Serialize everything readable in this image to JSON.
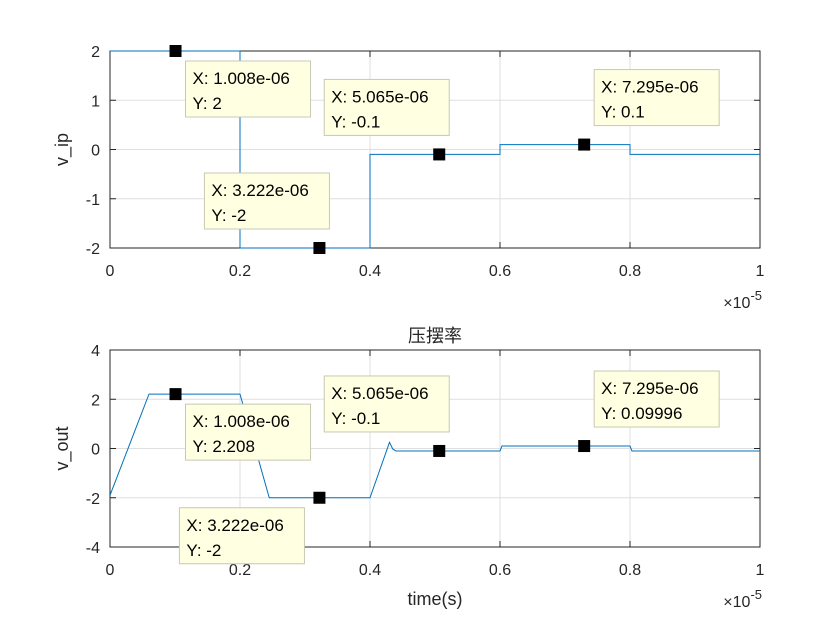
{
  "colors": {
    "line": "#0072bd",
    "grid": "#dfdfdf",
    "axis": "#262626",
    "tip_bg": "#ffffe1",
    "tip_border": "#c8c8b4",
    "marker": "#000000"
  },
  "x_exponent": {
    "base": "×10",
    "power": "-5"
  },
  "chart_data": [
    {
      "type": "line",
      "title": "",
      "xlabel": "",
      "ylabel": "v_ip",
      "xlim": [
        0,
        1
      ],
      "ylim": [
        -2,
        2
      ],
      "xticks": [
        0,
        0.2,
        0.4,
        0.6,
        0.8,
        1
      ],
      "xtick_labels": [
        "0",
        "0.2",
        "0.4",
        "0.6",
        "0.8",
        "1"
      ],
      "yticks": [
        -2,
        -1,
        0,
        1,
        2
      ],
      "ytick_labels": [
        "-2",
        "-1",
        "0",
        "1",
        "2"
      ],
      "grid": true,
      "series": [
        {
          "x": [
            0,
            0.2,
            0.2,
            0.4,
            0.4,
            0.6,
            0.6,
            0.8,
            0.8,
            1.0
          ],
          "y": [
            2,
            2,
            -2,
            -2,
            -0.1,
            -0.1,
            0.1,
            0.1,
            -0.1,
            -0.1
          ]
        }
      ],
      "datatips": [
        {
          "x": 0.1008,
          "y": 2,
          "line1": "X: 1.008e-06",
          "line2": "Y: 2",
          "placement": "below-right"
        },
        {
          "x": 0.3222,
          "y": -2,
          "line1": "X: 3.222e-06",
          "line2": "Y: -2",
          "placement": "above-left"
        },
        {
          "x": 0.5065,
          "y": -0.1,
          "line1": "X: 5.065e-06",
          "line2": "Y: -0.1",
          "placement": "above-left"
        },
        {
          "x": 0.7295,
          "y": 0.1,
          "line1": "X: 7.295e-06",
          "line2": "Y: 0.1",
          "placement": "above-right"
        }
      ]
    },
    {
      "type": "line",
      "title": "压摆率",
      "xlabel": "time(s)",
      "ylabel": "v_out",
      "xlim": [
        0,
        1
      ],
      "ylim": [
        -4,
        4
      ],
      "xticks": [
        0,
        0.2,
        0.4,
        0.6,
        0.8,
        1
      ],
      "xtick_labels": [
        "0",
        "0.2",
        "0.4",
        "0.6",
        "0.8",
        "1"
      ],
      "yticks": [
        -4,
        -2,
        0,
        2,
        4
      ],
      "ytick_labels": [
        "-4",
        "-2",
        "0",
        "2",
        "4"
      ],
      "grid": true,
      "series": [
        {
          "x": [
            0,
            0.06,
            0.2,
            0.245,
            0.4,
            0.43,
            0.435,
            0.44,
            0.6,
            0.603,
            0.8,
            0.803,
            1.0
          ],
          "y": [
            -1.9,
            2.208,
            2.208,
            -2,
            -2,
            0.25,
            -0.02,
            -0.1,
            -0.1,
            0.09996,
            0.09996,
            -0.1,
            -0.1
          ]
        }
      ],
      "datatips": [
        {
          "x": 0.1008,
          "y": 2.208,
          "line1": "X: 1.008e-06",
          "line2": "Y: 2.208",
          "placement": "below-right"
        },
        {
          "x": 0.3222,
          "y": -2,
          "line1": "X: 3.222e-06",
          "line2": "Y: -2",
          "placement": "below-left"
        },
        {
          "x": 0.5065,
          "y": -0.1,
          "line1": "X: 5.065e-06",
          "line2": "Y: -0.1",
          "placement": "above-left"
        },
        {
          "x": 0.7295,
          "y": 0.09996,
          "line1": "X: 7.295e-06",
          "line2": "Y: 0.09996",
          "placement": "above-right"
        }
      ]
    }
  ]
}
